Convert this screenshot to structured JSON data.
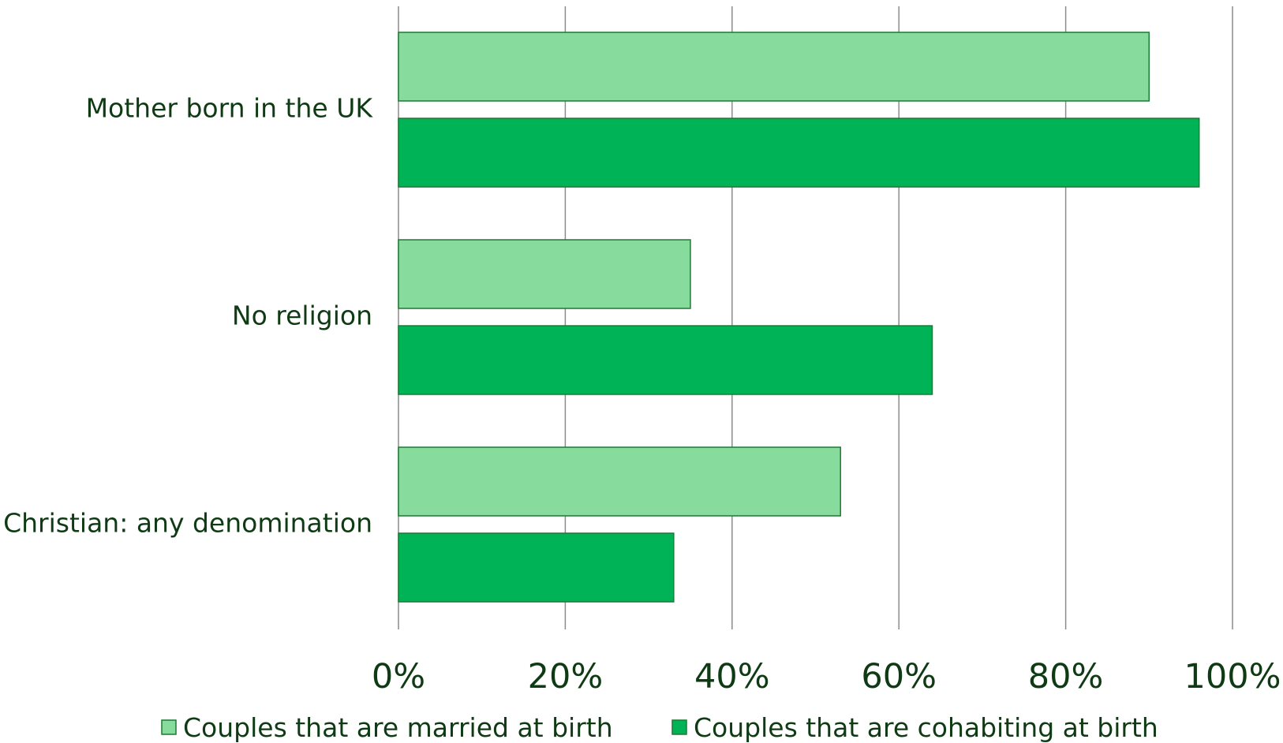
{
  "chart_data": {
    "type": "bar",
    "orientation": "horizontal",
    "categories": [
      "Mother born in the UK",
      "No religion",
      "Christian: any denomination"
    ],
    "series": [
      {
        "name": "Couples that are married at birth",
        "values": [
          90,
          35,
          53
        ],
        "color": "#87dc9d"
      },
      {
        "name": "Couples that are cohabiting at birth",
        "values": [
          96,
          64,
          33
        ],
        "color": "#00b356"
      }
    ],
    "xlim": [
      0,
      100
    ],
    "x_ticks": [
      0,
      20,
      40,
      60,
      80,
      100
    ],
    "x_tick_labels": [
      "0%",
      "20%",
      "40%",
      "60%",
      "80%",
      "100%"
    ],
    "grid": true,
    "legend_position": "bottom",
    "title": "",
    "xlabel": "",
    "ylabel": ""
  },
  "colors": {
    "text": "#0f3b14",
    "bar_border": "#1e7a35",
    "gridline": "#8c8c8c"
  }
}
